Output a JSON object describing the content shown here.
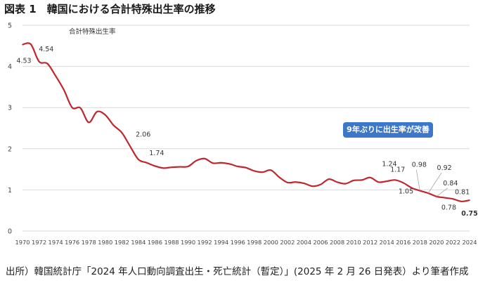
{
  "figure": {
    "title": "図表 1　韓国における合計特殊出生率の推移",
    "source": "出所）韓国統計庁「2024 年人口動向調査出生・死亡統計（暫定）」(2025 年 2 月 26 日発表）より筆者作成",
    "note_box": "9年ぶりに出生率が改善",
    "colors": {
      "line": "#c0272d",
      "note_bg": "#3d78c8",
      "grid": "#d9d9d9"
    }
  },
  "chart_data": {
    "type": "line",
    "title": "",
    "xlabel": "",
    "ylabel": "",
    "ylim": [
      0,
      5
    ],
    "yticks": [
      0,
      1,
      2,
      3,
      4,
      5
    ],
    "xlim": [
      1970,
      2024
    ],
    "xticks": [
      1970,
      1972,
      1974,
      1976,
      1978,
      1980,
      1982,
      1984,
      1986,
      1988,
      1990,
      1992,
      1994,
      1996,
      1998,
      2000,
      2002,
      2004,
      2006,
      2008,
      2010,
      2012,
      2014,
      2016,
      2018,
      2020,
      2022,
      2024
    ],
    "grid": "horizontal",
    "series": [
      {
        "name": "合計特殊出生率",
        "x": [
          1970,
          1971,
          1972,
          1973,
          1974,
          1975,
          1976,
          1977,
          1978,
          1979,
          1980,
          1981,
          1982,
          1983,
          1984,
          1985,
          1986,
          1987,
          1988,
          1989,
          1990,
          1991,
          1992,
          1993,
          1994,
          1995,
          1996,
          1997,
          1998,
          1999,
          2000,
          2001,
          2002,
          2003,
          2004,
          2005,
          2006,
          2007,
          2008,
          2009,
          2010,
          2011,
          2012,
          2013,
          2014,
          2015,
          2016,
          2017,
          2018,
          2019,
          2020,
          2021,
          2022,
          2023,
          2024
        ],
        "values": [
          4.53,
          4.54,
          4.12,
          4.07,
          3.77,
          3.43,
          3.0,
          2.99,
          2.64,
          2.9,
          2.82,
          2.57,
          2.39,
          2.06,
          1.74,
          1.66,
          1.58,
          1.53,
          1.55,
          1.56,
          1.57,
          1.71,
          1.76,
          1.65,
          1.66,
          1.63,
          1.57,
          1.54,
          1.46,
          1.43,
          1.48,
          1.31,
          1.18,
          1.19,
          1.16,
          1.09,
          1.13,
          1.26,
          1.19,
          1.15,
          1.23,
          1.24,
          1.3,
          1.19,
          1.21,
          1.24,
          1.17,
          1.05,
          0.98,
          0.92,
          0.84,
          0.81,
          0.78,
          0.72,
          0.75
        ]
      }
    ],
    "annotations": [
      {
        "x": 1970,
        "y": 4.53,
        "text": "4.53"
      },
      {
        "x": 1971,
        "y": 4.54,
        "text": "4.54"
      },
      {
        "x": 1983,
        "y": 2.06,
        "text": "2.06"
      },
      {
        "x": 1984,
        "y": 1.74,
        "text": "1.74"
      },
      {
        "x": 2015,
        "y": 1.24,
        "text": "1.24"
      },
      {
        "x": 2016,
        "y": 1.17,
        "text": "1.17"
      },
      {
        "x": 2017,
        "y": 1.05,
        "text": "1.05"
      },
      {
        "x": 2018,
        "y": 0.98,
        "text": "0.98"
      },
      {
        "x": 2019,
        "y": 0.92,
        "text": "0.92"
      },
      {
        "x": 2020,
        "y": 0.84,
        "text": "0.84"
      },
      {
        "x": 2021,
        "y": 0.81,
        "text": "0.81"
      },
      {
        "x": 2022,
        "y": 0.78,
        "text": "0.78"
      },
      {
        "x": 2024,
        "y": 0.75,
        "text": "0.75"
      }
    ]
  }
}
